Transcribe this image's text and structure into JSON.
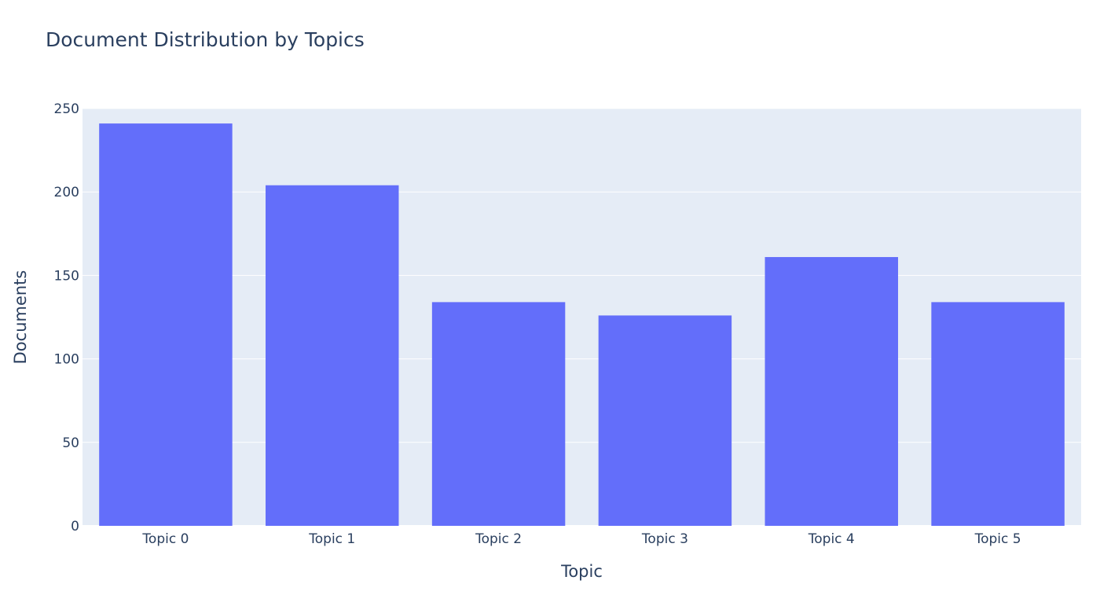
{
  "chart_data": {
    "type": "bar",
    "title": "Document Distribution by Topics",
    "xlabel": "Topic",
    "ylabel": "Documents",
    "categories": [
      "Topic 0",
      "Topic 1",
      "Topic 2",
      "Topic 3",
      "Topic 4",
      "Topic 5"
    ],
    "values": [
      241,
      204,
      134,
      126,
      161,
      134
    ],
    "ylim": [
      0,
      250
    ],
    "yticks": [
      0,
      50,
      100,
      150,
      200,
      250
    ],
    "grid": true,
    "legend": "none",
    "colors": {
      "bar": "#636efa",
      "plot_bg": "#e5ecf6",
      "grid": "#ffffff",
      "text": "#2a3f5f"
    }
  }
}
